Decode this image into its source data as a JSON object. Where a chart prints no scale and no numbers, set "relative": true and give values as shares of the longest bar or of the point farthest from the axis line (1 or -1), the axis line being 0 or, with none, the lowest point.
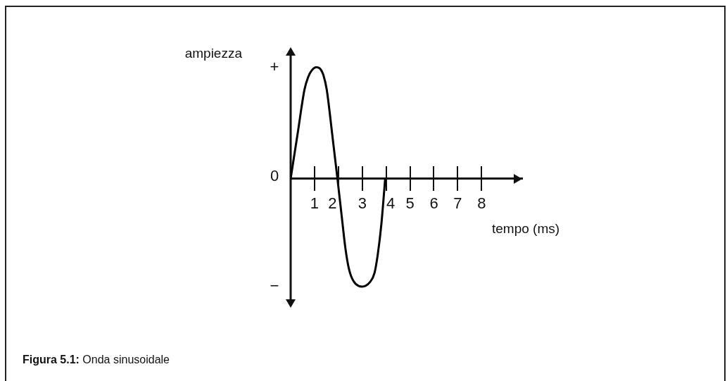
{
  "chart_data": {
    "type": "line",
    "title": "Figura 5.1: Onda sinusoidale",
    "xlabel": "tempo (ms)",
    "ylabel": "ampiezza",
    "annotations": [
      "+",
      "0",
      "−"
    ],
    "x": [
      0,
      0.29,
      0.58,
      0.73,
      0.88,
      1.07,
      1.22,
      1.37,
      1.51,
      1.74,
      1.96,
      2.14,
      2.29,
      2.44,
      2.63,
      2.99,
      3.32,
      3.51,
      3.65,
      3.8,
      3.96
    ],
    "values": [
      0,
      0.4,
      0.8,
      0.91,
      0.97,
      1,
      0.99,
      0.93,
      0.8,
      0.4,
      0,
      -0.34,
      -0.62,
      -0.81,
      -0.92,
      -0.97,
      -0.93,
      -0.85,
      -0.68,
      -0.41,
      0
    ],
    "color": "#000000",
    "relative": true,
    "xlim": [
      0,
      9.7
    ],
    "xticks": [
      1,
      2,
      3,
      4,
      5,
      6,
      7,
      8
    ],
    "marker": "none",
    "line_style": "solid",
    "tick_labels": "x"
  }
}
